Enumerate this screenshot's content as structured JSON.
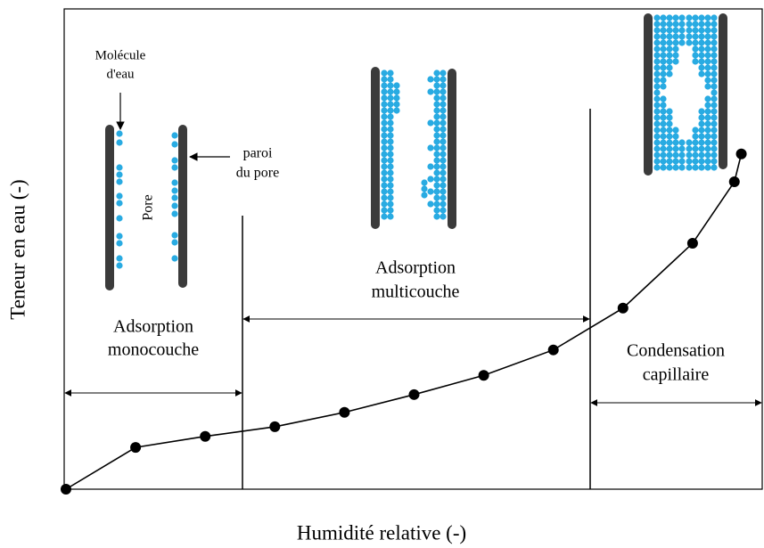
{
  "chart_data": {
    "type": "line",
    "x_label": "Humidité relative (-)",
    "y_label": "Teneur en eau (-)",
    "x": [
      0,
      0.1,
      0.2,
      0.3,
      0.4,
      0.5,
      0.6,
      0.7,
      0.8,
      0.9,
      0.96,
      0.97
    ],
    "values": [
      0,
      0.087,
      0.11,
      0.13,
      0.16,
      0.197,
      0.237,
      0.29,
      0.377,
      0.512,
      0.64,
      0.698
    ],
    "color": "#000000",
    "xlim": [
      0,
      1
    ],
    "ylim": [
      0,
      1
    ],
    "annotations": [
      {
        "lines": [
          "Adsorption",
          "monocouche"
        ]
      },
      {
        "lines": [
          "Adsorption",
          "multicouche"
        ]
      },
      {
        "lines": [
          "Condensation",
          "capillaire"
        ]
      },
      {
        "lines": [
          "Molécule",
          "d'eau"
        ]
      },
      {
        "lines": [
          "paroi",
          "du pore"
        ]
      },
      {
        "lines": [
          "Pore"
        ]
      }
    ]
  }
}
